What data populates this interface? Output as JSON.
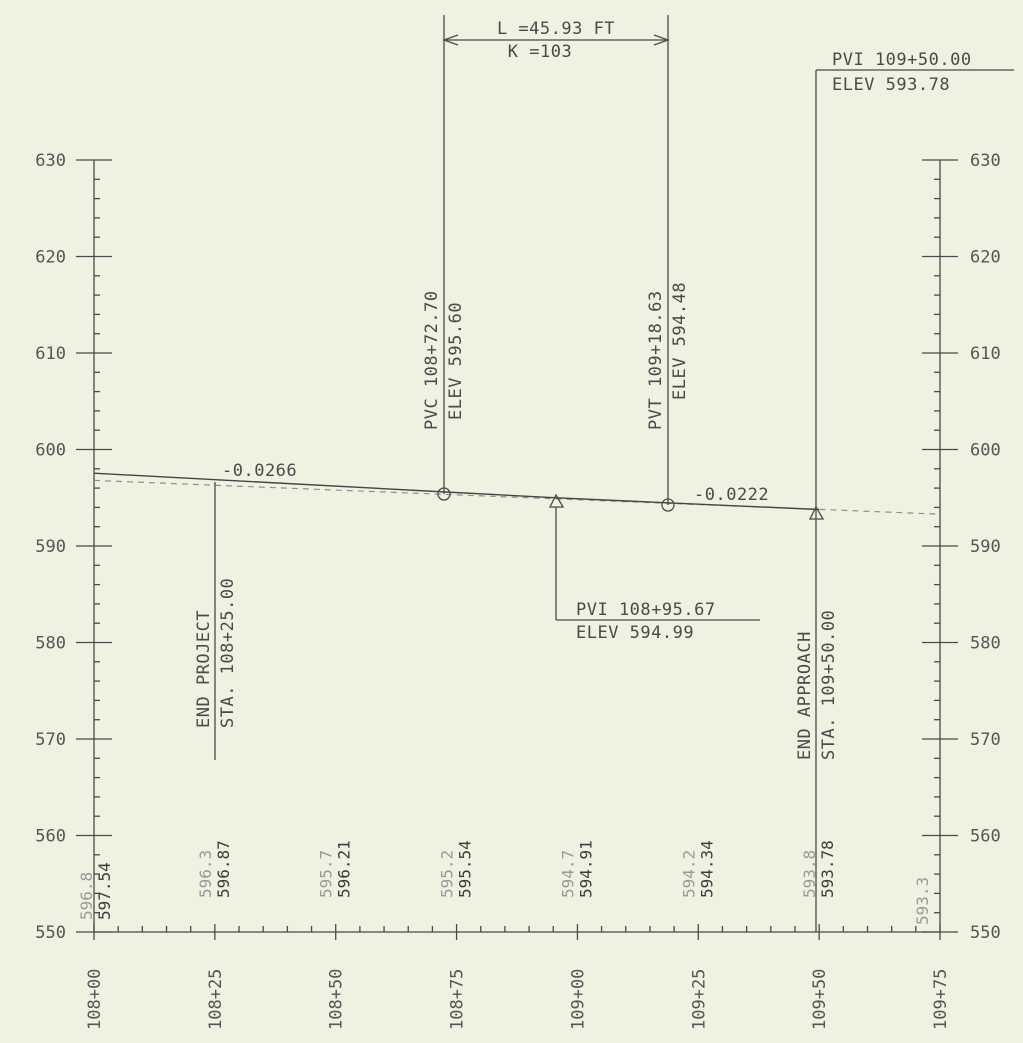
{
  "chart_data": {
    "type": "line",
    "yticks": [
      "550",
      "560",
      "570",
      "580",
      "590",
      "600",
      "610",
      "620",
      "630"
    ],
    "xticks": [
      "108+00",
      "108+25",
      "108+50",
      "108+75",
      "109+00",
      "109+25",
      "109+50",
      "109+75"
    ],
    "series": [
      {
        "points": [
          {
            "x": 10800,
            "y": 597.54
          },
          {
            "x": 10872.7,
            "y": 595.6
          },
          {
            "x": 10895.67,
            "y": 594.99
          },
          {
            "x": 10918.63,
            "y": 594.48
          },
          {
            "x": 10950.0,
            "y": 593.78
          }
        ]
      },
      {
        "points": [
          {
            "x": 10800,
            "y": 596.8
          },
          {
            "x": 10975,
            "y": 593.3
          }
        ]
      }
    ],
    "existing_labels": [
      {
        "x": 10800,
        "text": "596.8"
      },
      {
        "x": 10825,
        "text": "596.3"
      },
      {
        "x": 10850,
        "text": "595.7"
      },
      {
        "x": 10875,
        "text": "595.2"
      },
      {
        "x": 10900,
        "text": "594.7"
      },
      {
        "x": 10925,
        "text": "594.2"
      },
      {
        "x": 10950,
        "text": "593.8"
      },
      {
        "x": 10975,
        "text": "593.3"
      }
    ],
    "proposed_labels": [
      {
        "x": 10800,
        "text": "597.54"
      },
      {
        "x": 10825,
        "text": "596.87"
      },
      {
        "x": 10850,
        "text": "596.21"
      },
      {
        "x": 10875,
        "text": "595.54"
      },
      {
        "x": 10900,
        "text": "594.91"
      },
      {
        "x": 10925,
        "text": "594.34"
      },
      {
        "x": 10950,
        "text": "593.78"
      }
    ],
    "ylim": [
      550,
      630
    ],
    "xlim": [
      10800,
      10975
    ],
    "grid": false
  },
  "annotations": {
    "grade_1": "-0.0266",
    "grade_2": "-0.0222",
    "curve_l": "L =45.93 FT",
    "curve_k": "K =103",
    "pvc_sta": "PVC 108+72.70",
    "pvc_elev": "ELEV 595.60",
    "pvt_sta": "PVT 109+18.63",
    "pvt_elev": "ELEV 594.48",
    "pvi1_sta": "PVI 108+95.67",
    "pvi1_elev": "ELEV 594.99",
    "pvi2_sta": "PVI 109+50.00",
    "pvi2_elev": "ELEV 593.78",
    "end_project": "END PROJECT",
    "end_project_sta": "STA. 108+25.00",
    "end_approach": "END APPROACH",
    "end_approach_sta": "STA. 109+50.00"
  },
  "colors": {
    "background": "#eff2e0",
    "ink": "#4a4a4a",
    "existing": "#9a9a9a"
  }
}
